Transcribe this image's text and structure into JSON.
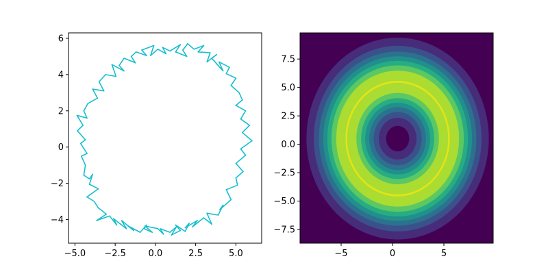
{
  "chart_data": [
    {
      "type": "line",
      "series_color": "#17becf",
      "xlim": [
        -5.4,
        6.6
      ],
      "ylim": [
        -5.3,
        6.3
      ],
      "x_ticks": [
        -5.0,
        -2.5,
        0.0,
        2.5,
        5.0
      ],
      "x_tick_labels": [
        "−5.0",
        "−2.5",
        "0.0",
        "2.5",
        "5.0"
      ],
      "y_ticks": [
        -4,
        -2,
        0,
        2,
        4,
        6
      ],
      "y_tick_labels": [
        "−4",
        "−2",
        "0",
        "2",
        "4",
        "6"
      ],
      "shape": "noisy closed loop (ring) centered near (0.6, 0.5) with radius about 5.1",
      "x": [
        -4.87,
        -4.5,
        -4.85,
        -4.35,
        -4.65,
        -4.25,
        -4.6,
        -4.35,
        -4.45,
        -4.1,
        -3.9,
        -4.1,
        -3.55,
        -4.25,
        -3.8,
        -3.55,
        -3.05,
        -3.65,
        -2.85,
        -2.4,
        -2.6,
        -1.8,
        -2.1,
        -1.35,
        -1.7,
        -0.95,
        -0.55,
        -0.7,
        -0.2,
        -0.65,
        0.15,
        0.5,
        0.3,
        0.9,
        1.3,
        1.0,
        1.55,
        1.25,
        1.85,
        2.1,
        1.85,
        2.6,
        2.3,
        3.0,
        3.5,
        3.2,
        3.9,
        4.2,
        4.0,
        4.7,
        4.4,
        5.1,
        5.0,
        5.45,
        5.0,
        5.6,
        5.3,
        6.0,
        5.4,
        5.85,
        5.3,
        5.6,
        5.0,
        5.4,
        5.2,
        4.7,
        5.0,
        4.4,
        4.6,
        3.95,
        4.2,
        3.5,
        3.8,
        3.2,
        3.4,
        2.65,
        3.0,
        2.4,
        2.0,
        1.7,
        1.95,
        1.25,
        1.55,
        0.9,
        0.45,
        0.65,
        0.15,
        -0.3,
        -0.1,
        -0.85,
        -0.55,
        -1.2,
        -1.5,
        -1.25,
        -1.95,
        -2.25,
        -1.95,
        -2.7,
        -2.45,
        -3.1,
        -3.5,
        -3.2,
        -3.9,
        -3.6,
        -4.2,
        -4.45,
        -4.25,
        -4.87
      ],
      "y": [
        1.75,
        1.2,
        0.9,
        0.4,
        0.2,
        -0.35,
        -0.5,
        -1.0,
        -1.55,
        -1.75,
        -1.5,
        -2.05,
        -2.3,
        -2.75,
        -3.0,
        -3.35,
        -3.7,
        -4.05,
        -3.8,
        -4.3,
        -3.95,
        -4.5,
        -4.05,
        -4.6,
        -4.35,
        -4.7,
        -4.3,
        -4.5,
        -4.7,
        -4.35,
        -4.5,
        -4.8,
        -4.5,
        -4.7,
        -4.4,
        -4.85,
        -4.6,
        -4.3,
        -4.65,
        -4.2,
        -4.45,
        -4.05,
        -4.4,
        -3.9,
        -4.25,
        -3.65,
        -3.75,
        -3.2,
        -3.45,
        -2.9,
        -2.35,
        -2.1,
        -1.7,
        -1.35,
        -0.9,
        -0.45,
        -0.1,
        0.35,
        0.8,
        1.2,
        1.55,
        2.0,
        2.3,
        2.6,
        3.0,
        3.4,
        3.8,
        4.05,
        4.4,
        4.7,
        4.2,
        4.9,
        5.1,
        4.7,
        5.2,
        5.25,
        5.6,
        5.4,
        5.7,
        5.35,
        5.0,
        5.25,
        5.65,
        5.3,
        5.5,
        5.15,
        5.4,
        5.05,
        5.6,
        5.35,
        5.05,
        5.25,
        5.0,
        4.65,
        4.9,
        4.5,
        4.2,
        4.55,
        3.9,
        4.0,
        3.6,
        3.1,
        3.2,
        2.7,
        2.4,
        2.0,
        1.6,
        1.75
      ]
    },
    {
      "type": "heatmap",
      "kind": "filled contour",
      "colormap": "viridis",
      "xlim": [
        -9,
        9.8
      ],
      "ylim": [
        -8.7,
        9.8
      ],
      "x_ticks": [
        -5,
        0,
        5
      ],
      "x_tick_labels": [
        "−5",
        "0",
        "5"
      ],
      "y_ticks": [
        -7.5,
        -5.0,
        -2.5,
        0.0,
        2.5,
        5.0,
        7.5
      ],
      "y_tick_labels": [
        "−7.5",
        "−5.0",
        "−2.5",
        "0.0",
        "2.5",
        "5.0",
        "7.5"
      ],
      "ring_center": [
        0.5,
        0.5
      ],
      "ring_peak_radius": 5.0,
      "levels": [
        0.0,
        0.125,
        0.25,
        0.375,
        0.5,
        0.625,
        0.75,
        0.875,
        1.0
      ],
      "level_colors": [
        "#440154",
        "#472c7a",
        "#3b518b",
        "#2c718e",
        "#21908d",
        "#27ad81",
        "#5cc863",
        "#aadc32",
        "#e2e418"
      ]
    }
  ]
}
